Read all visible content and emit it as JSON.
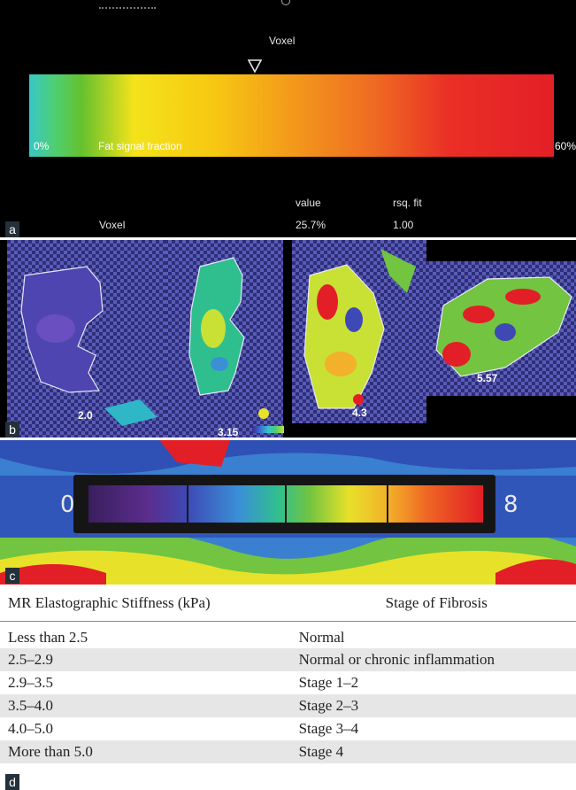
{
  "panel_a": {
    "letter": "a",
    "voxel_title": "Voxel",
    "colorbar": {
      "min_label": "0%",
      "max_label": "60%",
      "caption": "Fat signal fraction",
      "marker_value_percent": 25.7
    },
    "table": {
      "value_header": "value",
      "rsq_header": "rsq. fit",
      "row_label": "Voxel",
      "row_value": "25.7%",
      "row_rsq": "1.00"
    }
  },
  "panel_b": {
    "letter": "b",
    "values": [
      "2.0",
      "3.15",
      "4.3",
      "5.57"
    ]
  },
  "panel_c": {
    "letter": "c",
    "scale_min": "0",
    "scale_max": "8"
  },
  "panel_d": {
    "letter": "d",
    "headers": [
      "MR Elastographic Stiffness (kPa)",
      "Stage of Fibrosis"
    ],
    "rows": [
      [
        "Less than 2.5",
        "Normal"
      ],
      [
        "2.5–2.9",
        "Normal or chronic inflammation"
      ],
      [
        "2.9–3.5",
        "Stage 1–2"
      ],
      [
        "3.5–4.0",
        "Stage 2–3"
      ],
      [
        "4.0–5.0",
        "Stage 3–4"
      ],
      [
        "More than 5.0",
        "Stage 4"
      ]
    ]
  },
  "colors": {
    "panel_background": "#000000",
    "label_background": "#24303a",
    "row_shade": "#e6e6e6"
  }
}
